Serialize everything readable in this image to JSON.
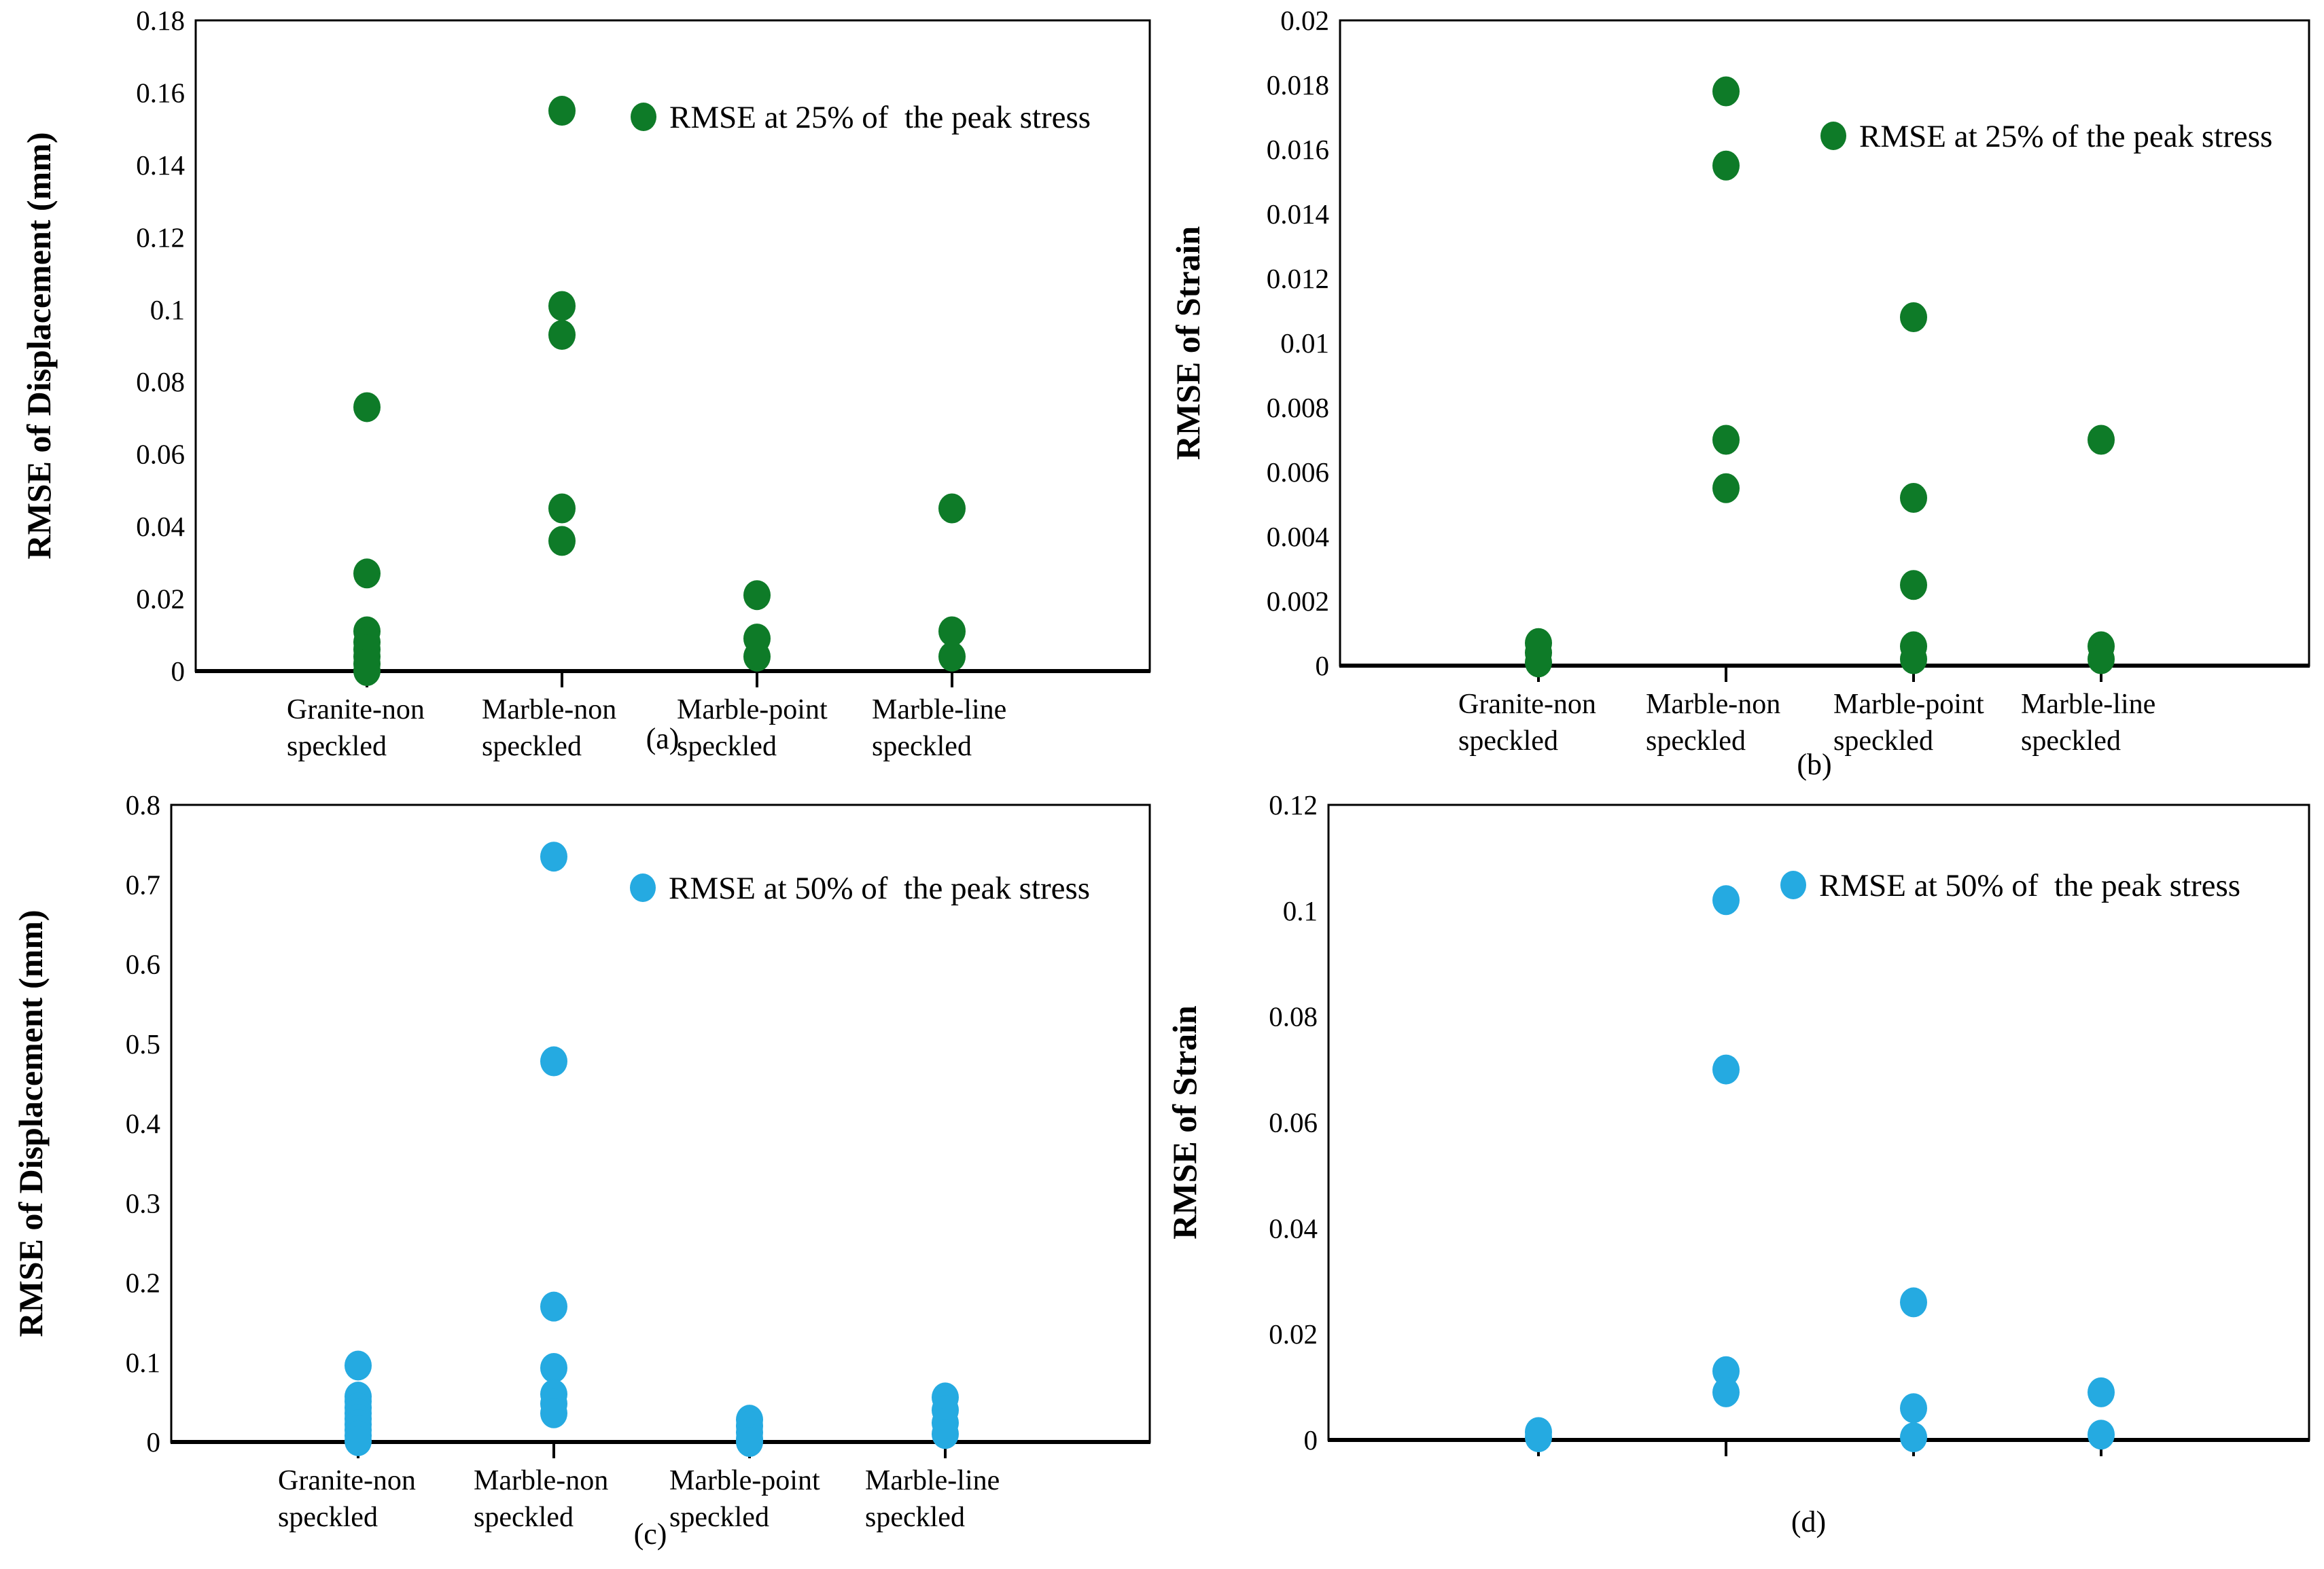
{
  "page": {
    "background": "#ffffff"
  },
  "colors": {
    "green": "#0E7B28",
    "blue": "#25AAE1",
    "axis": "#000000",
    "text": "#000000"
  },
  "categories": [
    {
      "name": "Granite-non speckled",
      "lines": [
        "Granite-non",
        "speckled"
      ]
    },
    {
      "name": "Marble-non speckled",
      "lines": [
        "Marble-non",
        "speckled"
      ]
    },
    {
      "name": "Marble-point speckled",
      "lines": [
        "Marble-point",
        "speckled"
      ]
    },
    {
      "name": "Marble-line speckled",
      "lines": [
        "Marble-line",
        "speckled"
      ]
    }
  ],
  "chart_data": [
    {
      "id": "a",
      "type": "scatter",
      "caption": "(a)",
      "ylabel": "RMSE of Displacement (mm)",
      "ymax": 0.18,
      "ystep": 0.02,
      "ytick_labels": [
        "0",
        "0.02",
        "0.04",
        "0.06",
        "0.08",
        "0.1",
        "0.12",
        "0.14",
        "0.16",
        "0.18"
      ],
      "grid": false,
      "legend": {
        "label": "RMSE at 25% of  the peak stress",
        "position": "top-right-inside"
      },
      "marker_color": "#0E7B28",
      "show_category_labels": true,
      "categories": [
        "Granite-non speckled",
        "Marble-non speckled",
        "Marble-point speckled",
        "Marble-line speckled"
      ],
      "series": [
        {
          "name": "Granite-non speckled",
          "values": [
            0.073,
            0.027,
            0.011,
            0.008,
            0.006,
            0.004,
            0.002,
            0.0
          ]
        },
        {
          "name": "Marble-non speckled",
          "values": [
            0.155,
            0.101,
            0.093,
            0.045,
            0.036
          ]
        },
        {
          "name": "Marble-point speckled",
          "values": [
            0.021,
            0.009,
            0.004
          ]
        },
        {
          "name": "Marble-line speckled",
          "values": [
            0.045,
            0.011,
            0.004
          ]
        }
      ]
    },
    {
      "id": "b",
      "type": "scatter",
      "caption": "(b)",
      "ylabel": "RMSE of Strain",
      "ymax": 0.02,
      "ystep": 0.002,
      "ytick_labels": [
        "0",
        "0.002",
        "0.004",
        "0.006",
        "0.008",
        "0.01",
        "0.012",
        "0.014",
        "0.016",
        "0.018",
        "0.02"
      ],
      "grid": false,
      "legend": {
        "label": "RMSE at 25% of the peak stress",
        "position": "top-right-inside"
      },
      "marker_color": "#0E7B28",
      "show_category_labels": true,
      "categories": [
        "Granite-non speckled",
        "Marble-non speckled",
        "Marble-point speckled",
        "Marble-line speckled"
      ],
      "series": [
        {
          "name": "Granite-non speckled",
          "values": [
            0.0007,
            0.0004,
            0.0001
          ]
        },
        {
          "name": "Marble-non speckled",
          "values": [
            0.0178,
            0.0155,
            0.007,
            0.0055
          ]
        },
        {
          "name": "Marble-point speckled",
          "values": [
            0.0108,
            0.0052,
            0.0025,
            0.0006,
            0.0002
          ]
        },
        {
          "name": "Marble-line speckled",
          "values": [
            0.007,
            0.0006,
            0.0002
          ]
        }
      ]
    },
    {
      "id": "c",
      "type": "scatter",
      "caption": "(c)",
      "ylabel": "RMSE of Displacement (mm)",
      "ymax": 0.8,
      "ystep": 0.1,
      "ytick_labels": [
        "0",
        "0.1",
        "0.2",
        "0.3",
        "0.4",
        "0.5",
        "0.6",
        "0.7",
        "0.8"
      ],
      "grid": false,
      "legend": {
        "label": "RMSE at 50% of  the peak stress",
        "position": "top-right-inside"
      },
      "marker_color": "#25AAE1",
      "show_category_labels": true,
      "categories": [
        "Granite-non speckled",
        "Marble-non speckled",
        "Marble-point speckled",
        "Marble-line speckled"
      ],
      "series": [
        {
          "name": "Granite-non speckled",
          "values": [
            0.096,
            0.057,
            0.051,
            0.043,
            0.036,
            0.029,
            0.022,
            0.015,
            0.008,
            0.001
          ]
        },
        {
          "name": "Marble-non speckled",
          "values": [
            0.735,
            0.478,
            0.17,
            0.093,
            0.06,
            0.048,
            0.036
          ]
        },
        {
          "name": "Marble-point speckled",
          "values": [
            0.028,
            0.02,
            0.012,
            0.004,
            0.0
          ]
        },
        {
          "name": "Marble-line speckled",
          "values": [
            0.056,
            0.04,
            0.024,
            0.01
          ]
        }
      ]
    },
    {
      "id": "d",
      "type": "scatter",
      "caption": "(d)",
      "ylabel": "RMSE of Strain",
      "ymax": 0.12,
      "ystep": 0.02,
      "ytick_labels": [
        "0",
        "0.02",
        "0.04",
        "0.06",
        "0.08",
        "0.1",
        "0.12"
      ],
      "grid": false,
      "legend": {
        "label": "RMSE at 50% of  the peak stress",
        "position": "top-right-inside"
      },
      "marker_color": "#25AAE1",
      "show_category_labels": false,
      "categories": [
        "Granite-non speckled",
        "Marble-non speckled",
        "Marble-point speckled",
        "Marble-line speckled"
      ],
      "series": [
        {
          "name": "Granite-non speckled",
          "values": [
            0.0015,
            0.0005
          ]
        },
        {
          "name": "Marble-non speckled",
          "values": [
            0.102,
            0.07,
            0.013,
            0.009
          ]
        },
        {
          "name": "Marble-point speckled",
          "values": [
            0.026,
            0.006,
            0.0005
          ]
        },
        {
          "name": "Marble-line speckled",
          "values": [
            0.009,
            0.001
          ]
        }
      ]
    }
  ]
}
